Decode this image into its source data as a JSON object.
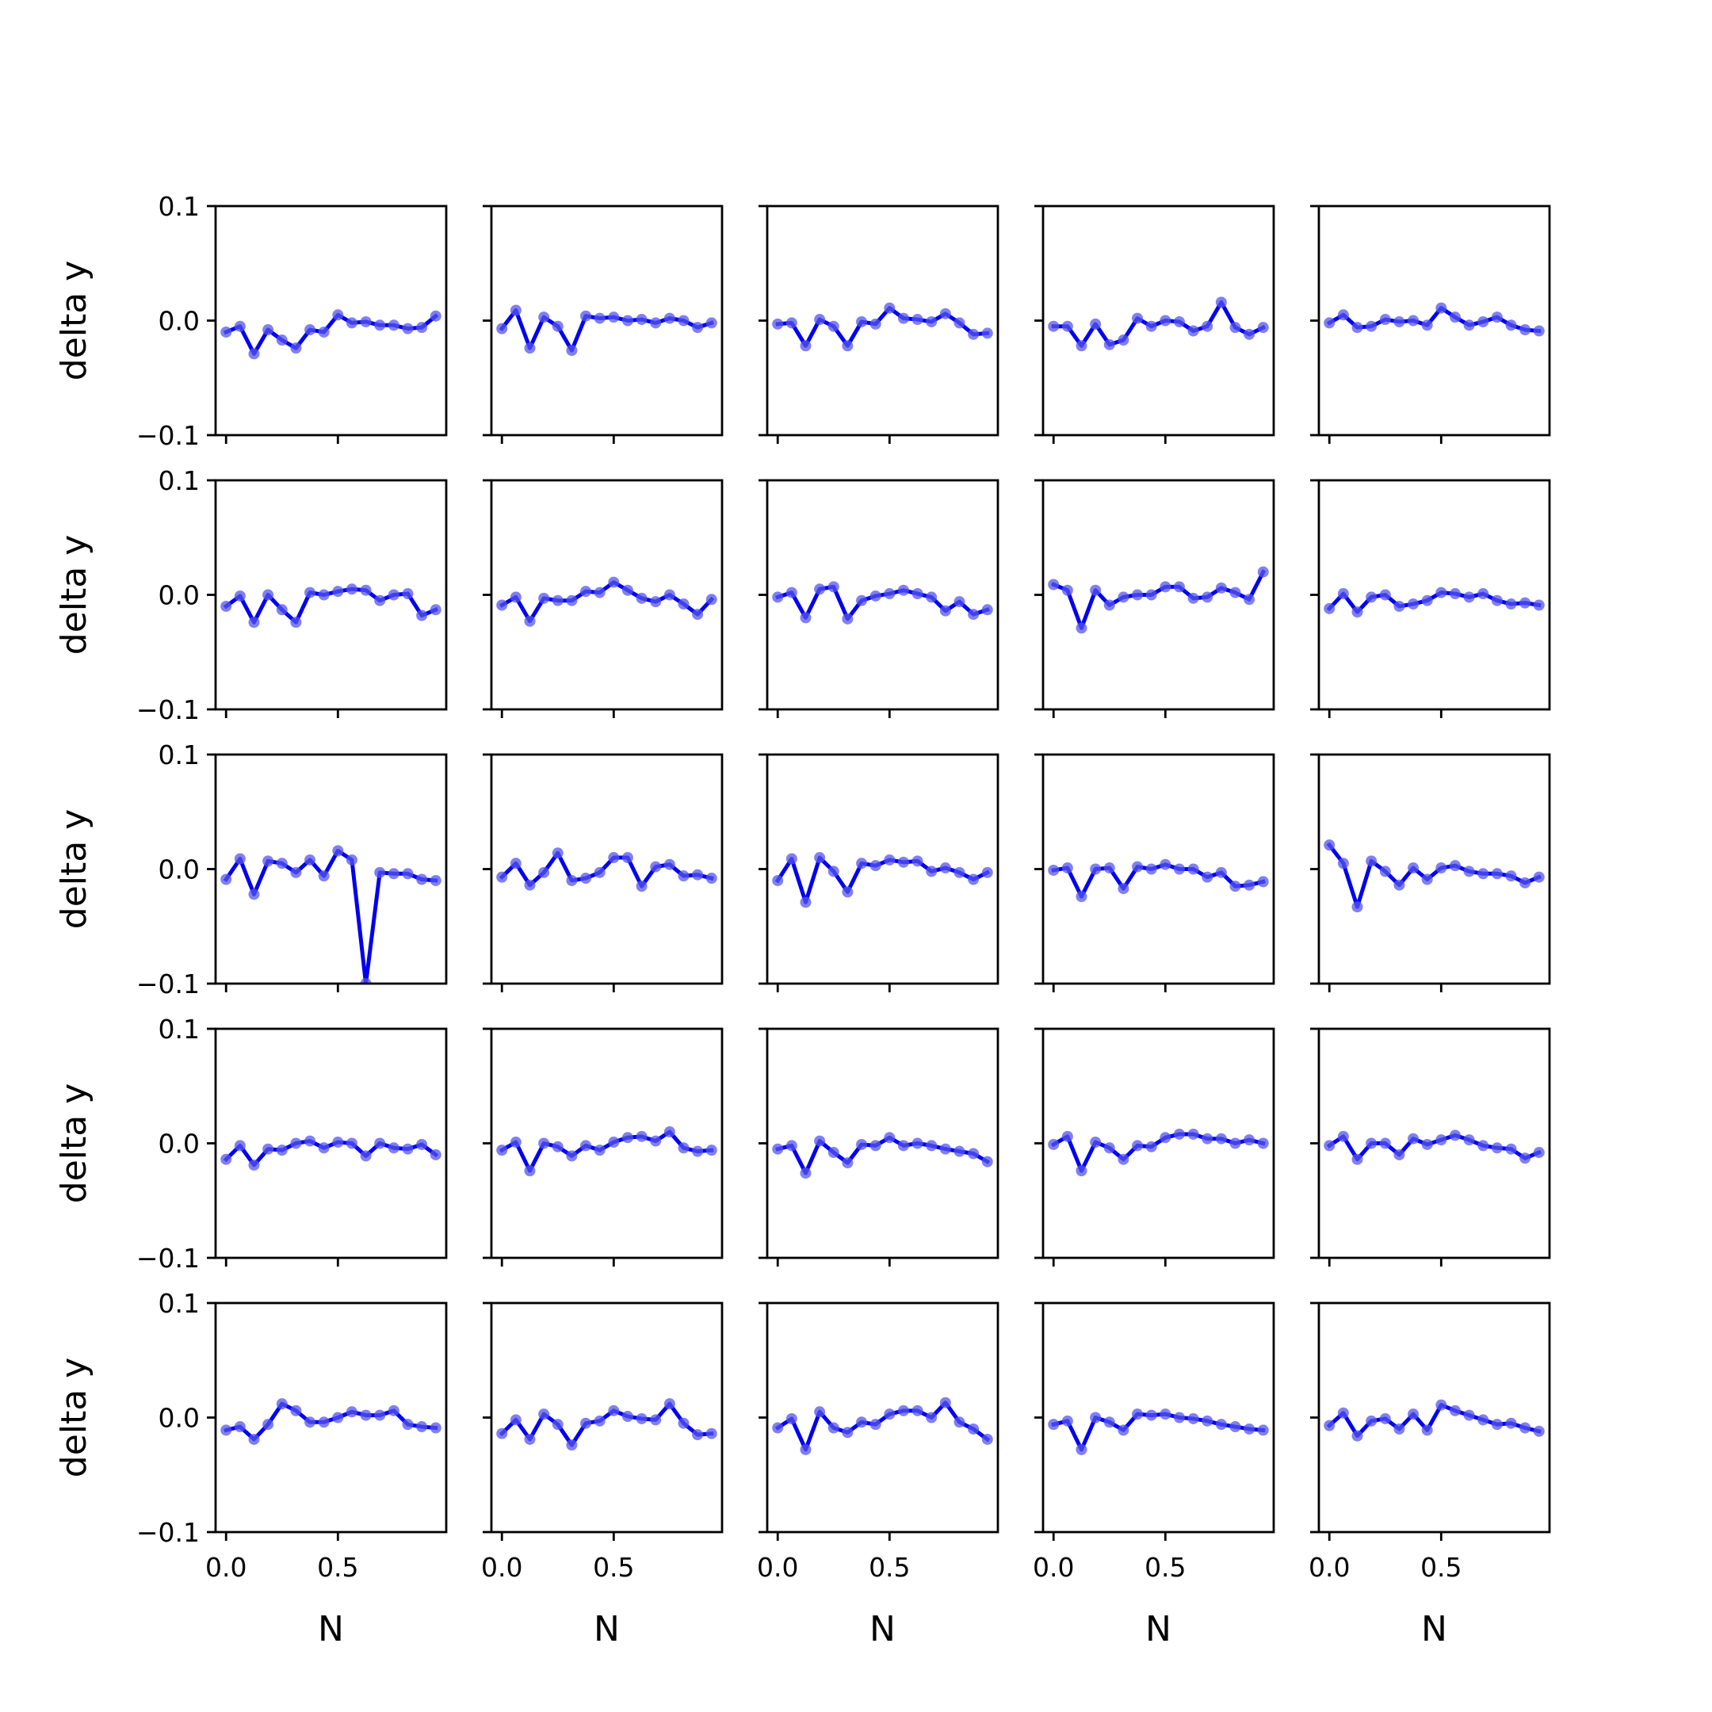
{
  "chart_data": {
    "type": "line",
    "layout": "5x5 grid of subplots, shared x and y axes",
    "xlabel": "N",
    "ylabel": "delta y",
    "xlim": [
      -0.0469,
      0.9844
    ],
    "ylim": [
      -0.1,
      0.1
    ],
    "x_ticks": [
      0.0,
      0.5
    ],
    "x_tick_labels": [
      "0.0",
      "0.5"
    ],
    "y_ticks": [
      -0.1,
      0.0,
      0.1
    ],
    "y_tick_labels": [
      "−0.1",
      "0.0",
      "0.1"
    ],
    "grid": false,
    "line_color": "#0000ee",
    "marker_color": "#5555ee",
    "x": [
      0.0,
      0.0625,
      0.125,
      0.1875,
      0.25,
      0.3125,
      0.375,
      0.4375,
      0.5,
      0.5625,
      0.625,
      0.6875,
      0.75,
      0.8125,
      0.875,
      0.9375
    ],
    "subplots": [
      {
        "row": 1,
        "col": 1,
        "values": [
          -0.01,
          -0.005,
          -0.029,
          -0.008,
          -0.017,
          -0.024,
          -0.008,
          -0.01,
          0.005,
          -0.002,
          -0.001,
          -0.004,
          -0.004,
          -0.007,
          -0.006,
          0.004
        ]
      },
      {
        "row": 1,
        "col": 2,
        "values": [
          -0.007,
          0.009,
          -0.024,
          0.003,
          -0.005,
          -0.026,
          0.004,
          0.002,
          0.003,
          0.0,
          0.001,
          -0.002,
          0.002,
          0.0,
          -0.006,
          -0.002
        ]
      },
      {
        "row": 1,
        "col": 3,
        "values": [
          -0.003,
          -0.002,
          -0.022,
          0.001,
          -0.005,
          -0.022,
          -0.001,
          -0.003,
          0.011,
          0.002,
          0.001,
          -0.001,
          0.006,
          -0.002,
          -0.012,
          -0.011
        ]
      },
      {
        "row": 1,
        "col": 4,
        "values": [
          -0.005,
          -0.005,
          -0.022,
          -0.003,
          -0.021,
          -0.017,
          0.002,
          -0.005,
          0.0,
          -0.001,
          -0.009,
          -0.005,
          0.016,
          -0.006,
          -0.012,
          -0.006
        ]
      },
      {
        "row": 1,
        "col": 5,
        "values": [
          -0.002,
          0.005,
          -0.006,
          -0.005,
          0.001,
          -0.001,
          0.0,
          -0.004,
          0.011,
          0.003,
          -0.004,
          -0.001,
          0.003,
          -0.004,
          -0.008,
          -0.009
        ]
      },
      {
        "row": 2,
        "col": 1,
        "values": [
          -0.01,
          -0.001,
          -0.024,
          0.0,
          -0.013,
          -0.024,
          0.002,
          0.0,
          0.003,
          0.005,
          0.004,
          -0.005,
          0.0,
          0.001,
          -0.018,
          -0.013
        ]
      },
      {
        "row": 2,
        "col": 2,
        "values": [
          -0.009,
          -0.002,
          -0.023,
          -0.003,
          -0.005,
          -0.005,
          0.003,
          0.002,
          0.011,
          0.004,
          -0.003,
          -0.006,
          0.0,
          -0.008,
          -0.017,
          -0.004
        ]
      },
      {
        "row": 2,
        "col": 3,
        "values": [
          -0.002,
          0.002,
          -0.02,
          0.005,
          0.007,
          -0.021,
          -0.005,
          -0.001,
          0.001,
          0.004,
          0.001,
          -0.002,
          -0.014,
          -0.006,
          -0.017,
          -0.013
        ]
      },
      {
        "row": 2,
        "col": 4,
        "values": [
          0.009,
          0.004,
          -0.029,
          0.004,
          -0.009,
          -0.002,
          0.0,
          0.0,
          0.007,
          0.007,
          -0.003,
          -0.002,
          0.006,
          0.002,
          -0.004,
          0.02
        ]
      },
      {
        "row": 2,
        "col": 5,
        "values": [
          -0.012,
          0.001,
          -0.015,
          -0.002,
          0.0,
          -0.01,
          -0.008,
          -0.005,
          0.002,
          0.001,
          -0.002,
          0.001,
          -0.005,
          -0.008,
          -0.007,
          -0.009
        ]
      },
      {
        "row": 3,
        "col": 1,
        "values": [
          -0.009,
          0.009,
          -0.022,
          0.007,
          0.005,
          -0.003,
          0.008,
          -0.006,
          0.016,
          0.008,
          -0.1,
          -0.003,
          -0.004,
          -0.004,
          -0.009,
          -0.01
        ]
      },
      {
        "row": 3,
        "col": 2,
        "values": [
          -0.007,
          0.005,
          -0.014,
          -0.003,
          0.014,
          -0.01,
          -0.008,
          -0.003,
          0.01,
          0.01,
          -0.015,
          0.002,
          0.004,
          -0.006,
          -0.005,
          -0.008
        ]
      },
      {
        "row": 3,
        "col": 3,
        "values": [
          -0.01,
          0.009,
          -0.029,
          0.01,
          -0.002,
          -0.02,
          0.005,
          0.003,
          0.008,
          0.006,
          0.007,
          -0.002,
          0.001,
          -0.003,
          -0.009,
          -0.003
        ]
      },
      {
        "row": 3,
        "col": 4,
        "values": [
          -0.001,
          0.001,
          -0.024,
          0.0,
          0.001,
          -0.017,
          0.002,
          0.0,
          0.004,
          0.0,
          0.0,
          -0.007,
          -0.003,
          -0.015,
          -0.014,
          -0.011
        ]
      },
      {
        "row": 3,
        "col": 5,
        "values": [
          0.021,
          0.005,
          -0.033,
          0.007,
          -0.002,
          -0.014,
          0.001,
          -0.009,
          0.001,
          0.003,
          -0.002,
          -0.004,
          -0.004,
          -0.006,
          -0.012,
          -0.007
        ]
      },
      {
        "row": 4,
        "col": 1,
        "values": [
          -0.014,
          -0.002,
          -0.019,
          -0.005,
          -0.006,
          0.0,
          0.002,
          -0.004,
          0.001,
          0.0,
          -0.011,
          0.0,
          -0.004,
          -0.005,
          -0.001,
          -0.01
        ]
      },
      {
        "row": 4,
        "col": 2,
        "values": [
          -0.006,
          0.001,
          -0.024,
          0.0,
          -0.003,
          -0.011,
          -0.002,
          -0.006,
          0.001,
          0.005,
          0.006,
          0.002,
          0.01,
          -0.004,
          -0.007,
          -0.006
        ]
      },
      {
        "row": 4,
        "col": 3,
        "values": [
          -0.005,
          -0.002,
          -0.026,
          0.002,
          -0.008,
          -0.017,
          -0.001,
          -0.002,
          0.005,
          -0.002,
          0.0,
          -0.002,
          -0.005,
          -0.007,
          -0.009,
          -0.016
        ]
      },
      {
        "row": 4,
        "col": 4,
        "values": [
          -0.001,
          0.006,
          -0.024,
          0.001,
          -0.004,
          -0.014,
          -0.002,
          -0.003,
          0.005,
          0.008,
          0.008,
          0.004,
          0.004,
          0.0,
          0.003,
          0.0
        ]
      },
      {
        "row": 4,
        "col": 5,
        "values": [
          -0.002,
          0.006,
          -0.014,
          0.0,
          0.0,
          -0.01,
          0.004,
          -0.001,
          0.003,
          0.007,
          0.003,
          -0.002,
          -0.004,
          -0.005,
          -0.013,
          -0.008
        ]
      },
      {
        "row": 5,
        "col": 1,
        "values": [
          -0.011,
          -0.008,
          -0.019,
          -0.006,
          0.012,
          0.006,
          -0.004,
          -0.004,
          0.0,
          0.005,
          0.002,
          0.002,
          0.006,
          -0.006,
          -0.008,
          -0.009
        ]
      },
      {
        "row": 5,
        "col": 2,
        "values": [
          -0.014,
          -0.002,
          -0.019,
          0.003,
          -0.006,
          -0.024,
          -0.005,
          -0.003,
          0.006,
          0.001,
          -0.001,
          -0.002,
          0.012,
          -0.005,
          -0.015,
          -0.014
        ]
      },
      {
        "row": 5,
        "col": 3,
        "values": [
          -0.009,
          -0.001,
          -0.028,
          0.005,
          -0.009,
          -0.013,
          -0.004,
          -0.006,
          0.003,
          0.006,
          0.006,
          0.0,
          0.013,
          -0.004,
          -0.01,
          -0.019
        ]
      },
      {
        "row": 5,
        "col": 4,
        "values": [
          -0.006,
          -0.003,
          -0.028,
          0.0,
          -0.004,
          -0.011,
          0.003,
          0.002,
          0.003,
          0.0,
          -0.001,
          -0.003,
          -0.006,
          -0.008,
          -0.01,
          -0.011
        ]
      },
      {
        "row": 5,
        "col": 5,
        "values": [
          -0.007,
          0.004,
          -0.016,
          -0.003,
          -0.001,
          -0.01,
          0.003,
          -0.011,
          0.011,
          0.006,
          0.002,
          -0.002,
          -0.006,
          -0.005,
          -0.009,
          -0.012
        ]
      }
    ]
  }
}
